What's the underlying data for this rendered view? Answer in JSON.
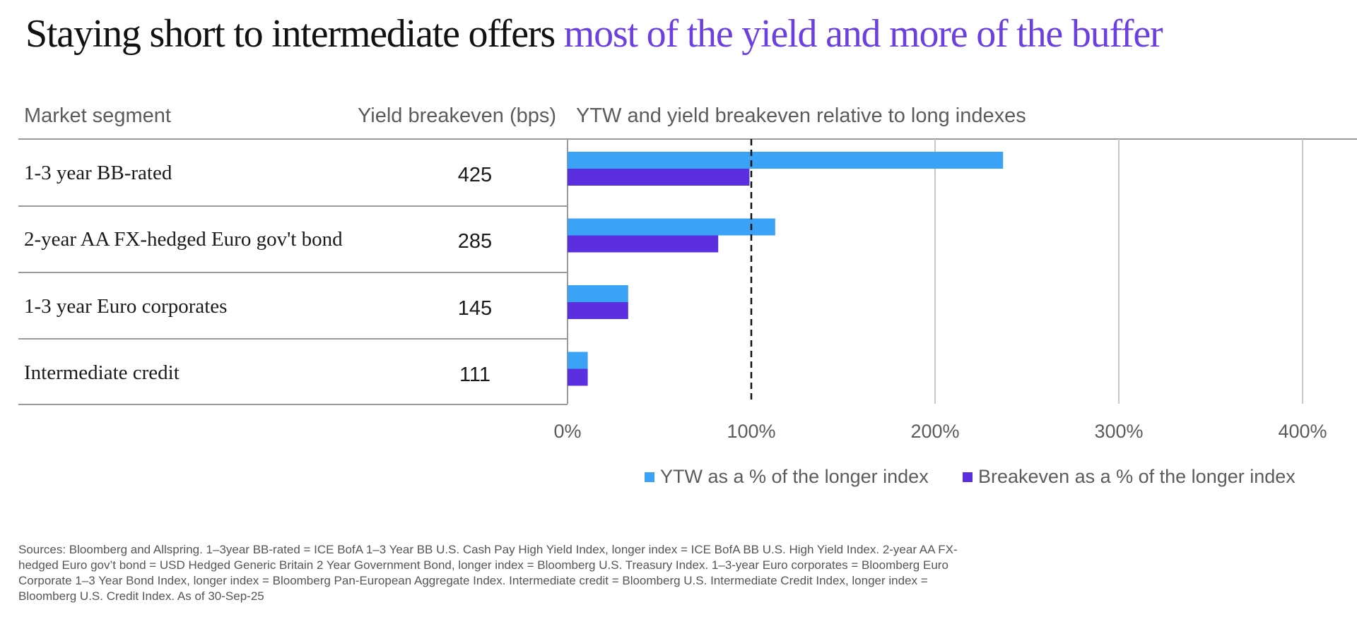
{
  "title": {
    "main": "Staying short to intermediate offers ",
    "accent": "most of the yield and more of the buffer"
  },
  "headers": {
    "segment": "Market segment",
    "breakeven": "Yield breakeven (bps)",
    "chart": "YTW and yield breakeven relative to long indexes"
  },
  "rows": [
    {
      "label": "1-3 year BB-rated",
      "breakeven": "425"
    },
    {
      "label": "2-year AA FX-hedged Euro gov't bond",
      "breakeven": "285"
    },
    {
      "label": "1-3 year Euro corporates",
      "breakeven": "145"
    },
    {
      "label": "Intermediate credit",
      "breakeven": "111"
    }
  ],
  "legend": {
    "ytw": "YTW as a % of the longer index",
    "breakeven": "Breakeven as a % of the longer index"
  },
  "colors": {
    "ytw": "#3aa3f5",
    "breakeven": "#5b2ee0",
    "accent": "#6b3fe0",
    "grid": "#c8c8c8",
    "line": "#9a9a9a"
  },
  "chart_data": {
    "type": "bar",
    "orientation": "horizontal",
    "title": "YTW and yield breakeven relative to long indexes",
    "categories": [
      "1-3 year BB-rated",
      "2-year AA FX-hedged Euro gov't bond",
      "1-3 year Euro corporates",
      "Intermediate credit"
    ],
    "series": [
      {
        "name": "YTW as a % of the longer index",
        "values": [
          237,
          113,
          33,
          11
        ]
      },
      {
        "name": "Breakeven as a % of the longer index",
        "values": [
          99,
          82,
          33,
          11
        ]
      }
    ],
    "xlim": [
      0,
      400
    ],
    "xticks": [
      0,
      100,
      200,
      300,
      400
    ],
    "xtick_labels": [
      "0%",
      "100%",
      "200%",
      "300%",
      "400%"
    ],
    "reference_line": 100,
    "grid": true,
    "legend_position": "bottom"
  },
  "source": "Sources: Bloomberg and Allspring. 1–3year BB-rated = ICE BofA 1–3 Year BB U.S. Cash Pay High Yield Index, longer index = ICE BofA BB U.S. High Yield Index. 2-year AA FX-hedged Euro gov’t bond = USD Hedged Generic Britain 2 Year Government Bond, longer index = Bloomberg U.S. Treasury Index. 1–3-year Euro corporates = Bloomberg Euro Corporate 1–3 Year Bond Index, longer index = Bloomberg Pan-European Aggregate Index. Intermediate credit = Bloomberg U.S. Intermediate Credit Index, longer index = Bloomberg U.S. Credit Index. As of 30-Sep-25"
}
